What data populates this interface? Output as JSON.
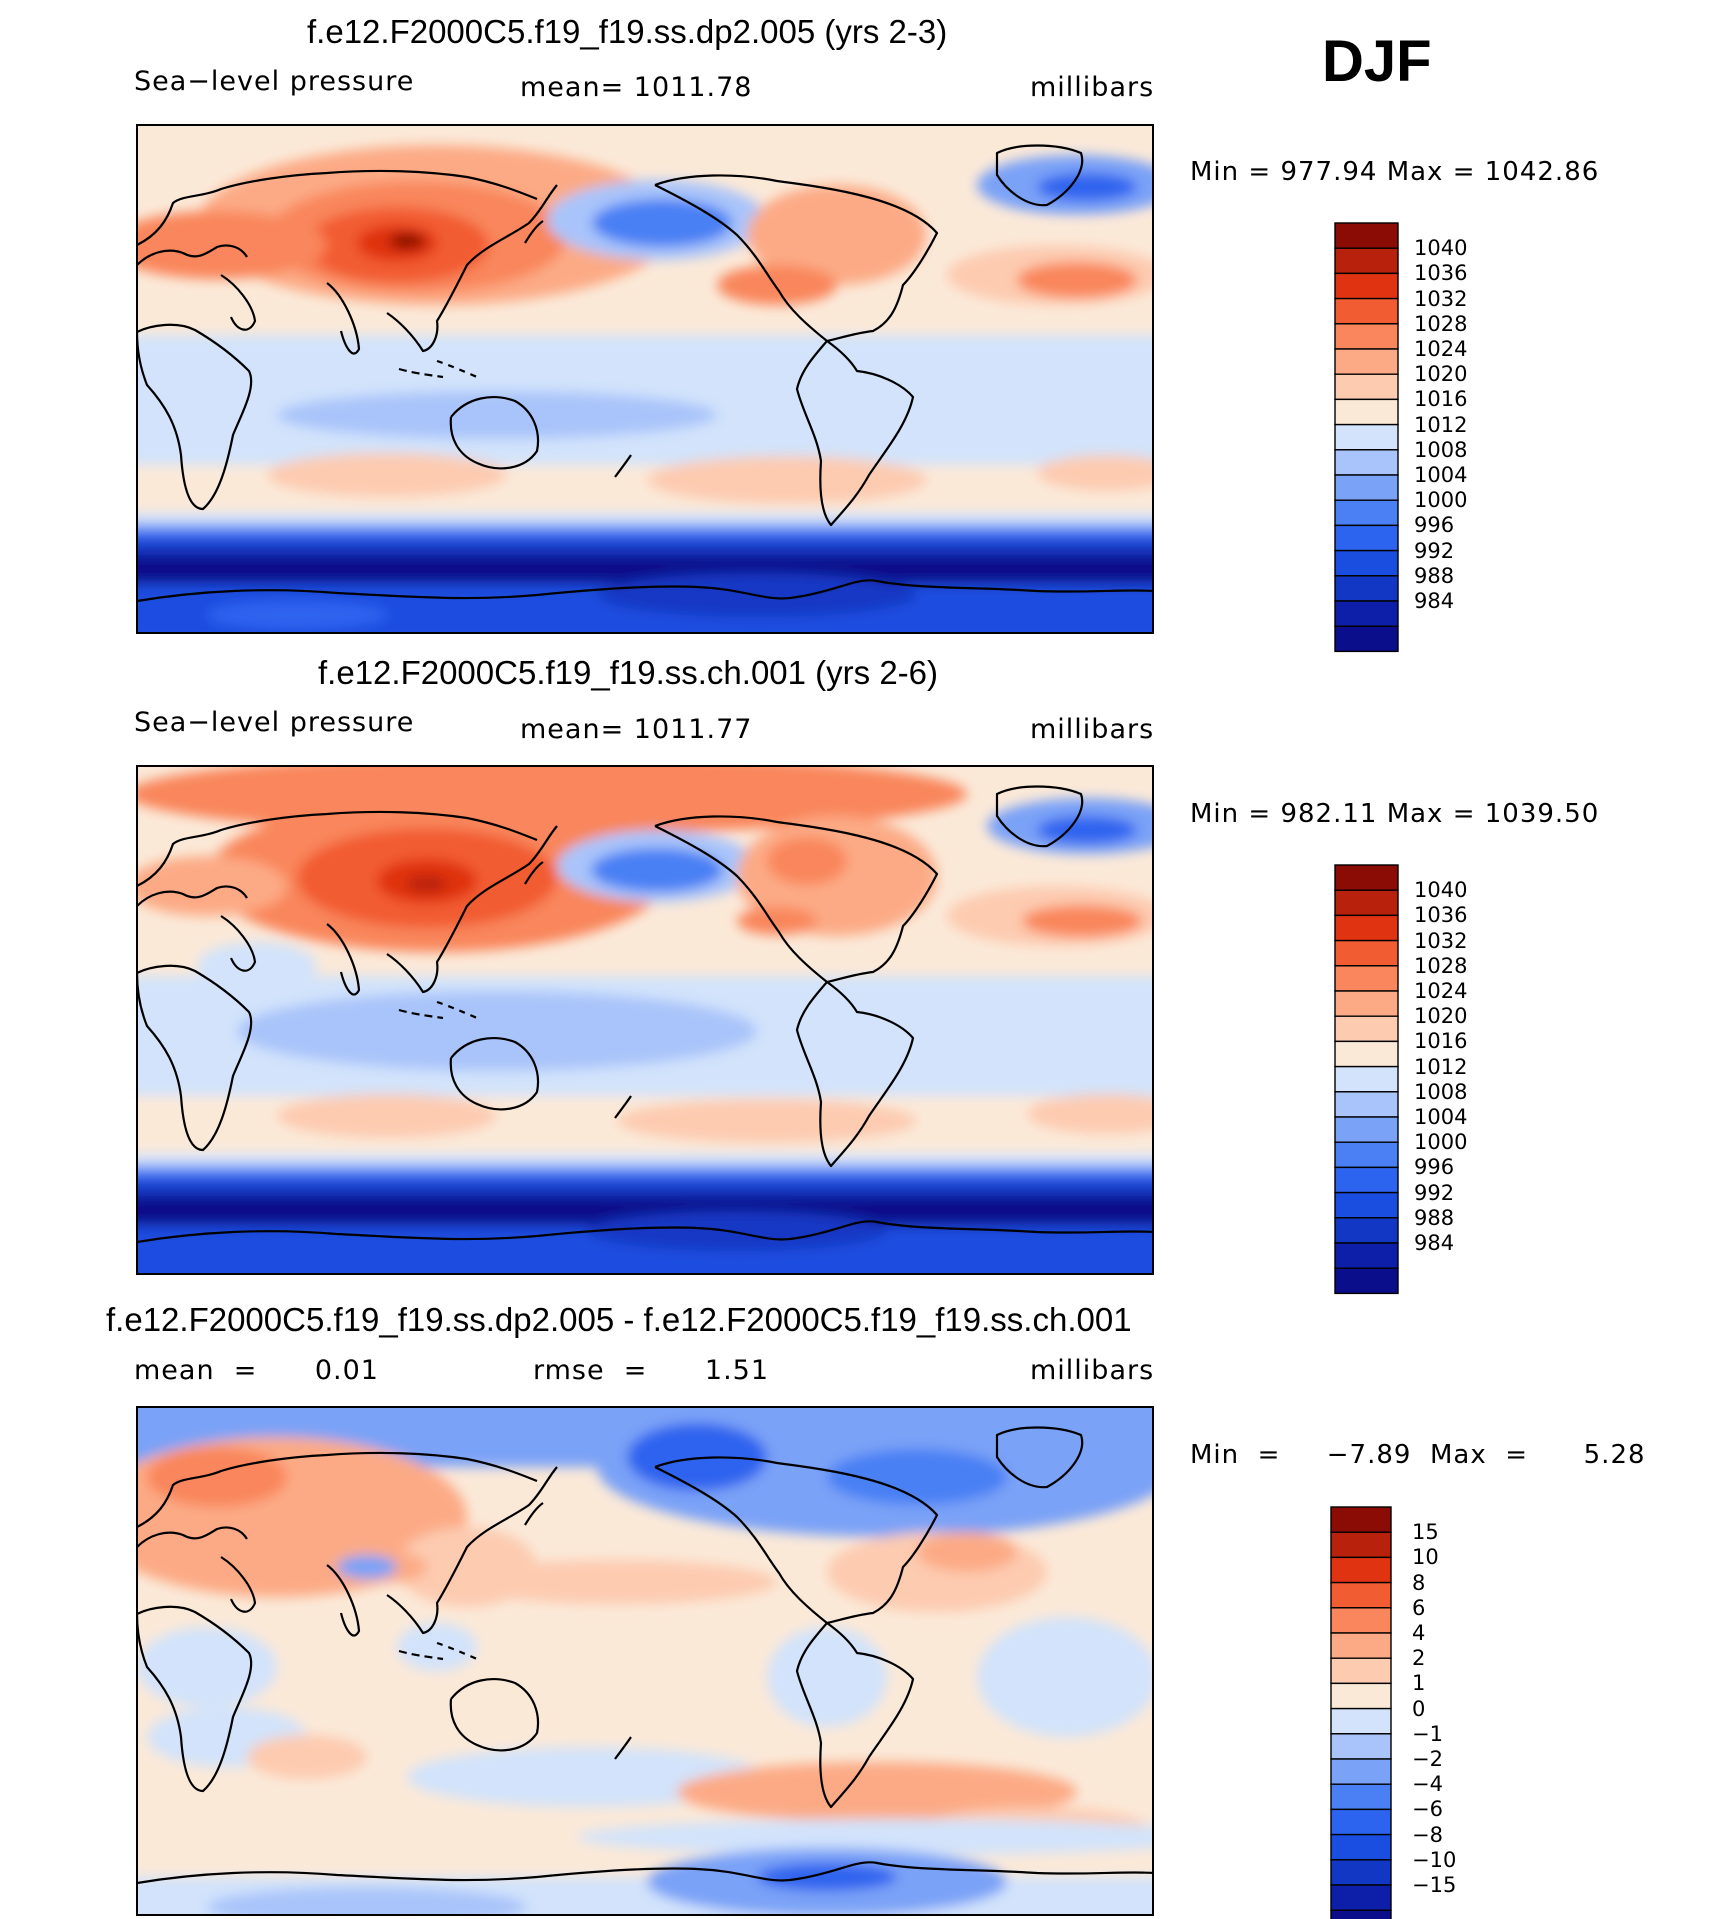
{
  "season": "DJF",
  "colors": {
    "abs_scale": [
      "#0a0e8a",
      "#0d1fa8",
      "#1237c4",
      "#1a4ee0",
      "#2d64ef",
      "#4a80f4",
      "#7aa2f7",
      "#a9c4fa",
      "#d2e3fb",
      "#fbe9d8",
      "#fdcbb0",
      "#fcaa85",
      "#f9865c",
      "#f25c33",
      "#df3311",
      "#b8210b",
      "#8a0c05"
    ],
    "diff_scale": [
      "#0a0e8a",
      "#0d1fa8",
      "#1237c4",
      "#1a4ee0",
      "#2d64ef",
      "#4a80f4",
      "#7aa2f7",
      "#a9c4fa",
      "#d2e3fb",
      "#fbe9d8",
      "#fdcbb0",
      "#fcaa85",
      "#f9865c",
      "#f25c33",
      "#df3311",
      "#b8210b",
      "#8a0c05"
    ]
  },
  "panels": [
    {
      "title": "f.e12.F2000C5.f19_f19.ss.dp2.005 (yrs 2-3)",
      "left_label": "Sea−level pressure",
      "center_label": "mean=  1011.78",
      "units": "millibars",
      "minmax": "Min  =  977.94  Max  =  1042.86",
      "colorbar_labels": [
        "1040",
        "1036",
        "1032",
        "1028",
        "1024",
        "1020",
        "1016",
        "1012",
        "1008",
        "1004",
        "1000",
        "996",
        "992",
        "988",
        "984"
      ]
    },
    {
      "title": "f.e12.F2000C5.f19_f19.ss.ch.001 (yrs 2-6)",
      "left_label": "Sea−level pressure",
      "center_label": "mean=  1011.77",
      "units": "millibars",
      "minmax": "Min  =  982.11  Max  =  1039.50",
      "colorbar_labels": [
        "1040",
        "1036",
        "1032",
        "1028",
        "1024",
        "1020",
        "1016",
        "1012",
        "1008",
        "1004",
        "1000",
        "996",
        "992",
        "988",
        "984"
      ]
    },
    {
      "title": "f.e12.F2000C5.f19_f19.ss.dp2.005 - f.e12.F2000C5.f19_f19.ss.ch.001",
      "left_label": "mean  =      0.01",
      "center_label": "rmse  =      1.51",
      "units": "millibars",
      "minmax": "Min  =     −7.89  Max  =      5.28",
      "colorbar_labels": [
        "15",
        "10",
        "8",
        "6",
        "4",
        "2",
        "1",
        "0",
        "−1",
        "−2",
        "−4",
        "−6",
        "−8",
        "−10",
        "−15"
      ]
    }
  ],
  "chart_data": [
    {
      "type": "heatmap",
      "title": "f.e12.F2000C5.f19_f19.ss.dp2.005 (yrs 2-3)",
      "variable": "Sea-level pressure",
      "units": "millibars",
      "season": "DJF",
      "mean": 1011.78,
      "min": 977.94,
      "max": 1042.86,
      "contour_levels": [
        984,
        988,
        992,
        996,
        1000,
        1004,
        1008,
        1012,
        1016,
        1020,
        1024,
        1028,
        1032,
        1036,
        1040
      ],
      "projection": "cylindrical, Pacific-centred (lon 0 to 360)"
    },
    {
      "type": "heatmap",
      "title": "f.e12.F2000C5.f19_f19.ss.ch.001 (yrs 2-6)",
      "variable": "Sea-level pressure",
      "units": "millibars",
      "season": "DJF",
      "mean": 1011.77,
      "min": 982.11,
      "max": 1039.5,
      "contour_levels": [
        984,
        988,
        992,
        996,
        1000,
        1004,
        1008,
        1012,
        1016,
        1020,
        1024,
        1028,
        1032,
        1036,
        1040
      ],
      "projection": "cylindrical, Pacific-centred (lon 0 to 360)"
    },
    {
      "type": "heatmap",
      "title": "f.e12.F2000C5.f19_f19.ss.dp2.005 - f.e12.F2000C5.f19_f19.ss.ch.001",
      "units": "millibars",
      "season": "DJF",
      "mean": 0.01,
      "rmse": 1.51,
      "min": -7.89,
      "max": 5.28,
      "contour_levels": [
        -15,
        -10,
        -8,
        -6,
        -4,
        -2,
        -1,
        0,
        1,
        2,
        4,
        6,
        8,
        10,
        15
      ],
      "projection": "cylindrical, Pacific-centred (lon 0 to 360)"
    }
  ]
}
